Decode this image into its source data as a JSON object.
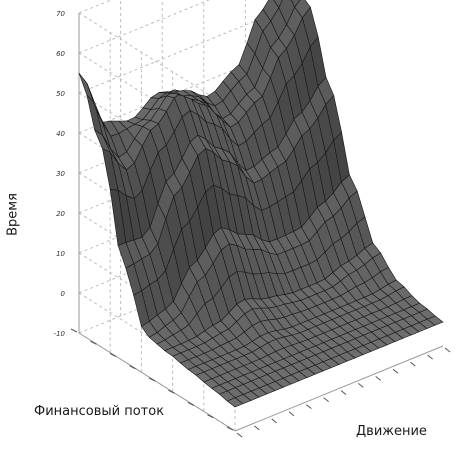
{
  "chart_data": {
    "type": "surface",
    "zlabel": "Время",
    "xlabel": "Финансовый поток",
    "ylabel": "Движение",
    "zlim": [
      -10,
      70
    ],
    "z_ticks": [
      "70",
      "60",
      "50",
      "40",
      "30",
      "20",
      "10",
      "0",
      "-10"
    ],
    "grid": true,
    "surface_color": "#666666",
    "mesh_color": "#161616",
    "approx_grid_rows": [
      [
        55,
        40,
        14,
        0,
        -1,
        -2,
        -3,
        -4
      ],
      [
        40,
        32,
        15,
        2,
        -1,
        -2,
        -3,
        -4
      ],
      [
        38,
        40,
        28,
        10,
        0,
        -2,
        -3,
        -4
      ],
      [
        42,
        46,
        36,
        16,
        3,
        -1,
        -3,
        -4
      ],
      [
        40,
        40,
        30,
        12,
        1,
        -2,
        -3,
        -4
      ],
      [
        36,
        32,
        22,
        8,
        0,
        -2,
        -3,
        -4
      ],
      [
        40,
        36,
        24,
        8,
        0,
        -2,
        -3,
        -4
      ],
      [
        52,
        46,
        30,
        12,
        2,
        -2,
        -3,
        -4
      ],
      [
        60,
        54,
        36,
        16,
        4,
        -1,
        -3,
        -4
      ]
    ]
  }
}
